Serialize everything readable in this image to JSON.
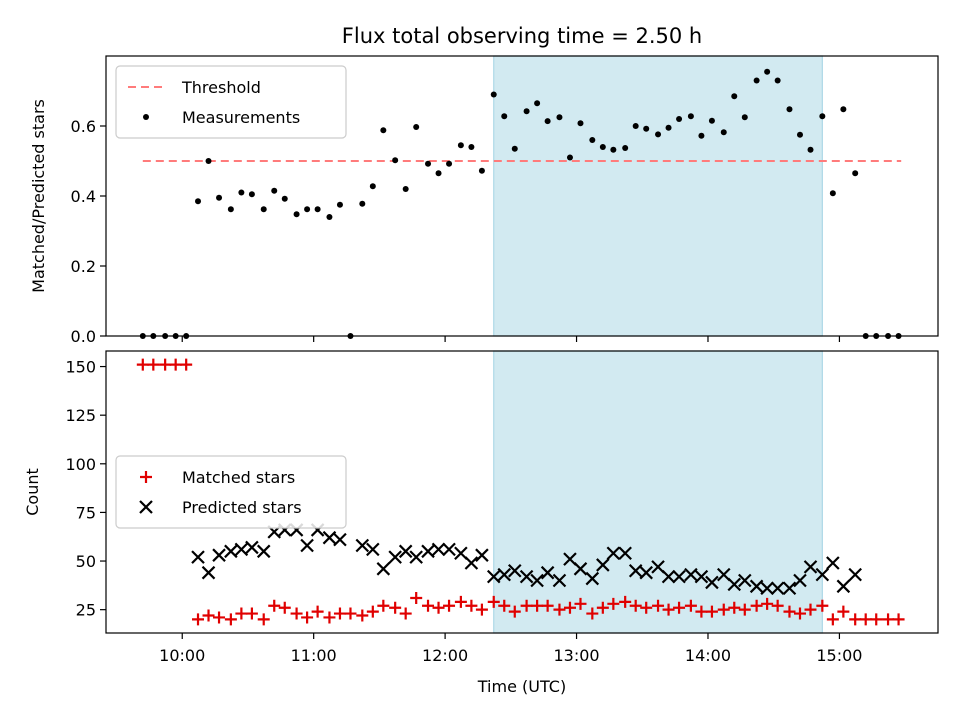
{
  "title": "Flux total observing time = 2.50 h",
  "colors": {
    "threshold": "#ff7b7b",
    "measurements": "#000000",
    "matched": "#e00000",
    "predicted": "#000000",
    "span": "#add8e6"
  },
  "chart_data": [
    {
      "type": "scatter",
      "panel": "top",
      "ylabel": "Matched/Predicted stars",
      "xlim": [
        9.42,
        15.75
      ],
      "ylim": [
        0,
        0.8
      ],
      "yticks": [
        0,
        0.2,
        0.4,
        0.6
      ],
      "ytick_labels": [
        "0.0",
        "0.2",
        "0.4",
        "0.6"
      ],
      "highlight_span": [
        12.37,
        14.87
      ],
      "legend": {
        "location": "upper-left",
        "entries": [
          "Threshold",
          "Measurements"
        ]
      },
      "series": [
        {
          "name": "Threshold",
          "kind": "dashed-line",
          "x": [
            9.7,
            15.47
          ],
          "y": [
            0.5,
            0.5
          ]
        },
        {
          "name": "Measurements",
          "kind": "points",
          "points": [
            [
              9.7,
              0
            ],
            [
              9.78,
              0
            ],
            [
              9.87,
              0
            ],
            [
              9.95,
              0
            ],
            [
              10.03,
              0
            ],
            [
              10.12,
              0.385
            ],
            [
              10.2,
              0.5
            ],
            [
              10.28,
              0.395
            ],
            [
              10.37,
              0.362
            ],
            [
              10.45,
              0.41
            ],
            [
              10.53,
              0.405
            ],
            [
              10.62,
              0.362
            ],
            [
              10.7,
              0.415
            ],
            [
              10.78,
              0.392
            ],
            [
              10.87,
              0.348
            ],
            [
              10.95,
              0.362
            ],
            [
              11.03,
              0.362
            ],
            [
              11.12,
              0.34
            ],
            [
              11.2,
              0.375
            ],
            [
              11.28,
              0
            ],
            [
              11.37,
              0.378
            ],
            [
              11.45,
              0.428
            ],
            [
              11.53,
              0.588
            ],
            [
              11.62,
              0.502
            ],
            [
              11.7,
              0.42
            ],
            [
              11.78,
              0.597
            ],
            [
              11.87,
              0.492
            ],
            [
              11.95,
              0.465
            ],
            [
              12.03,
              0.492
            ],
            [
              12.12,
              0.545
            ],
            [
              12.2,
              0.54
            ],
            [
              12.28,
              0.472
            ],
            [
              12.37,
              0.69
            ],
            [
              12.45,
              0.628
            ],
            [
              12.53,
              0.535
            ],
            [
              12.62,
              0.642
            ],
            [
              12.7,
              0.665
            ],
            [
              12.78,
              0.614
            ],
            [
              12.87,
              0.625
            ],
            [
              12.95,
              0.51
            ],
            [
              13.03,
              0.608
            ],
            [
              13.12,
              0.56
            ],
            [
              13.2,
              0.54
            ],
            [
              13.28,
              0.532
            ],
            [
              13.37,
              0.537
            ],
            [
              13.45,
              0.6
            ],
            [
              13.53,
              0.592
            ],
            [
              13.62,
              0.576
            ],
            [
              13.7,
              0.595
            ],
            [
              13.78,
              0.62
            ],
            [
              13.87,
              0.628
            ],
            [
              13.95,
              0.572
            ],
            [
              14.03,
              0.615
            ],
            [
              14.12,
              0.582
            ],
            [
              14.2,
              0.685
            ],
            [
              14.28,
              0.625
            ],
            [
              14.37,
              0.73
            ],
            [
              14.45,
              0.755
            ],
            [
              14.53,
              0.73
            ],
            [
              14.62,
              0.648
            ],
            [
              14.7,
              0.575
            ],
            [
              14.78,
              0.532
            ],
            [
              14.87,
              0.628
            ],
            [
              14.95,
              0.408
            ],
            [
              15.03,
              0.648
            ],
            [
              15.12,
              0.465
            ],
            [
              15.2,
              0
            ],
            [
              15.28,
              0
            ],
            [
              15.37,
              0
            ],
            [
              15.45,
              0
            ]
          ]
        }
      ]
    },
    {
      "type": "scatter",
      "panel": "bottom",
      "xlabel": "Time (UTC)",
      "ylabel": "Count",
      "xlim": [
        9.42,
        15.75
      ],
      "ylim": [
        13,
        158
      ],
      "xticks": [
        10,
        11,
        12,
        13,
        14,
        15
      ],
      "xtick_labels": [
        "10:00",
        "11:00",
        "12:00",
        "13:00",
        "14:00",
        "15:00"
      ],
      "yticks": [
        25,
        50,
        75,
        100,
        125,
        150
      ],
      "ytick_labels": [
        "25",
        "50",
        "75",
        "100",
        "125",
        "150"
      ],
      "highlight_span": [
        12.37,
        14.87
      ],
      "legend": {
        "location": "center-left",
        "entries": [
          "Matched stars",
          "Predicted stars"
        ]
      },
      "series": [
        {
          "name": "Matched stars",
          "marker": "plus",
          "points": [
            [
              9.7,
              151
            ],
            [
              9.78,
              151
            ],
            [
              9.87,
              151
            ],
            [
              9.95,
              151
            ],
            [
              10.03,
              151
            ],
            [
              10.12,
              20
            ],
            [
              10.2,
              22
            ],
            [
              10.28,
              21
            ],
            [
              10.37,
              20
            ],
            [
              10.45,
              23
            ],
            [
              10.53,
              23
            ],
            [
              10.62,
              20
            ],
            [
              10.7,
              27
            ],
            [
              10.78,
              26
            ],
            [
              10.87,
              23
            ],
            [
              10.95,
              21
            ],
            [
              11.03,
              24
            ],
            [
              11.12,
              21
            ],
            [
              11.2,
              23
            ],
            [
              11.28,
              23
            ],
            [
              11.37,
              22
            ],
            [
              11.45,
              24
            ],
            [
              11.53,
              27
            ],
            [
              11.62,
              26
            ],
            [
              11.7,
              23
            ],
            [
              11.78,
              31
            ],
            [
              11.87,
              27
            ],
            [
              11.95,
              26
            ],
            [
              12.03,
              27
            ],
            [
              12.12,
              29
            ],
            [
              12.2,
              27
            ],
            [
              12.28,
              25
            ],
            [
              12.37,
              29
            ],
            [
              12.45,
              27
            ],
            [
              12.53,
              24
            ],
            [
              12.62,
              27
            ],
            [
              12.7,
              27
            ],
            [
              12.78,
              27
            ],
            [
              12.87,
              25
            ],
            [
              12.95,
              26
            ],
            [
              13.03,
              28
            ],
            [
              13.12,
              23
            ],
            [
              13.2,
              26
            ],
            [
              13.28,
              28
            ],
            [
              13.37,
              29
            ],
            [
              13.45,
              27
            ],
            [
              13.53,
              26
            ],
            [
              13.62,
              27
            ],
            [
              13.7,
              25
            ],
            [
              13.78,
              26
            ],
            [
              13.87,
              27
            ],
            [
              13.95,
              24
            ],
            [
              14.03,
              24
            ],
            [
              14.12,
              25
            ],
            [
              14.2,
              26
            ],
            [
              14.28,
              25
            ],
            [
              14.37,
              27
            ],
            [
              14.45,
              28
            ],
            [
              14.53,
              27
            ],
            [
              14.62,
              24
            ],
            [
              14.7,
              23
            ],
            [
              14.78,
              25
            ],
            [
              14.87,
              27
            ],
            [
              14.95,
              20
            ],
            [
              15.03,
              24
            ],
            [
              15.12,
              20
            ],
            [
              15.2,
              20
            ],
            [
              15.28,
              20
            ],
            [
              15.37,
              20
            ],
            [
              15.45,
              20
            ]
          ]
        },
        {
          "name": "Predicted stars",
          "marker": "x",
          "points": [
            [
              10.12,
              52
            ],
            [
              10.2,
              44
            ],
            [
              10.28,
              53
            ],
            [
              10.37,
              55
            ],
            [
              10.45,
              56
            ],
            [
              10.53,
              57
            ],
            [
              10.62,
              55
            ],
            [
              10.7,
              65
            ],
            [
              10.78,
              66
            ],
            [
              10.87,
              66
            ],
            [
              10.95,
              58
            ],
            [
              11.03,
              66
            ],
            [
              11.12,
              62
            ],
            [
              11.2,
              61
            ],
            [
              11.37,
              58
            ],
            [
              11.45,
              56
            ],
            [
              11.53,
              46
            ],
            [
              11.62,
              52
            ],
            [
              11.7,
              55
            ],
            [
              11.78,
              52
            ],
            [
              11.87,
              55
            ],
            [
              11.95,
              56
            ],
            [
              12.03,
              56
            ],
            [
              12.12,
              54
            ],
            [
              12.2,
              49
            ],
            [
              12.28,
              53
            ],
            [
              12.37,
              42
            ],
            [
              12.45,
              43
            ],
            [
              12.53,
              45
            ],
            [
              12.62,
              42
            ],
            [
              12.7,
              40
            ],
            [
              12.78,
              44
            ],
            [
              12.87,
              40
            ],
            [
              12.95,
              51
            ],
            [
              13.03,
              46
            ],
            [
              13.12,
              41
            ],
            [
              13.2,
              48
            ],
            [
              13.28,
              54
            ],
            [
              13.37,
              54
            ],
            [
              13.45,
              45
            ],
            [
              13.53,
              44
            ],
            [
              13.62,
              47
            ],
            [
              13.7,
              42
            ],
            [
              13.78,
              42
            ],
            [
              13.87,
              43
            ],
            [
              13.95,
              42
            ],
            [
              14.03,
              39
            ],
            [
              14.12,
              43
            ],
            [
              14.2,
              38
            ],
            [
              14.28,
              40
            ],
            [
              14.37,
              37
            ],
            [
              14.45,
              36
            ],
            [
              14.53,
              36
            ],
            [
              14.62,
              36
            ],
            [
              14.7,
              40
            ],
            [
              14.78,
              47
            ],
            [
              14.87,
              43
            ],
            [
              14.95,
              49
            ],
            [
              15.03,
              37
            ],
            [
              15.12,
              43
            ]
          ]
        }
      ]
    }
  ]
}
